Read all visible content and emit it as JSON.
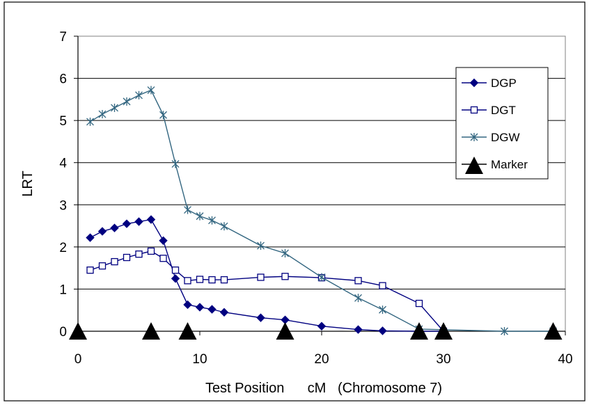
{
  "chart_data": {
    "type": "line",
    "xlabel": "Test Position      cM   (Chromosome 7)",
    "ylabel": "LRT",
    "xlim": [
      0,
      40
    ],
    "ylim": [
      0,
      7
    ],
    "xticks": [
      0,
      10,
      20,
      30,
      40
    ],
    "yticks": [
      0,
      1,
      2,
      3,
      4,
      5,
      6,
      7
    ],
    "grid": "horizontal",
    "legend_position": "right",
    "series": [
      {
        "name": "DGP",
        "marker": "diamond",
        "color": "#000080",
        "x": [
          1,
          2,
          3,
          4,
          5,
          6,
          7,
          8,
          9,
          10,
          11,
          12,
          15,
          17,
          20,
          23,
          25,
          28,
          30
        ],
        "y": [
          2.22,
          2.37,
          2.45,
          2.55,
          2.6,
          2.65,
          2.15,
          1.25,
          0.63,
          0.57,
          0.52,
          0.45,
          0.32,
          0.27,
          0.12,
          0.04,
          0.01,
          0.0,
          0.0
        ]
      },
      {
        "name": "DGT",
        "marker": "square-open",
        "color": "#000080",
        "x": [
          1,
          2,
          3,
          4,
          5,
          6,
          7,
          8,
          9,
          10,
          11,
          12,
          15,
          17,
          20,
          23,
          25,
          28,
          30
        ],
        "y": [
          1.45,
          1.55,
          1.65,
          1.75,
          1.83,
          1.9,
          1.73,
          1.45,
          1.2,
          1.23,
          1.22,
          1.22,
          1.28,
          1.3,
          1.27,
          1.2,
          1.08,
          0.66,
          0.0
        ]
      },
      {
        "name": "DGW",
        "marker": "asterisk",
        "color": "#336680",
        "x": [
          1,
          2,
          3,
          4,
          5,
          6,
          7,
          8,
          9,
          10,
          11,
          12,
          15,
          17,
          20,
          23,
          25,
          28,
          35,
          39
        ],
        "y": [
          4.97,
          5.15,
          5.3,
          5.45,
          5.6,
          5.72,
          5.13,
          3.97,
          2.88,
          2.73,
          2.63,
          2.49,
          2.03,
          1.85,
          1.28,
          0.79,
          0.51,
          0.05,
          0.0,
          0.0
        ]
      },
      {
        "name": "Marker",
        "marker": "triangle",
        "color": "#000000",
        "line": false,
        "x": [
          0,
          6,
          9,
          17,
          28,
          30,
          39
        ],
        "y": [
          0,
          0,
          0,
          0,
          0,
          0,
          0
        ]
      }
    ]
  }
}
